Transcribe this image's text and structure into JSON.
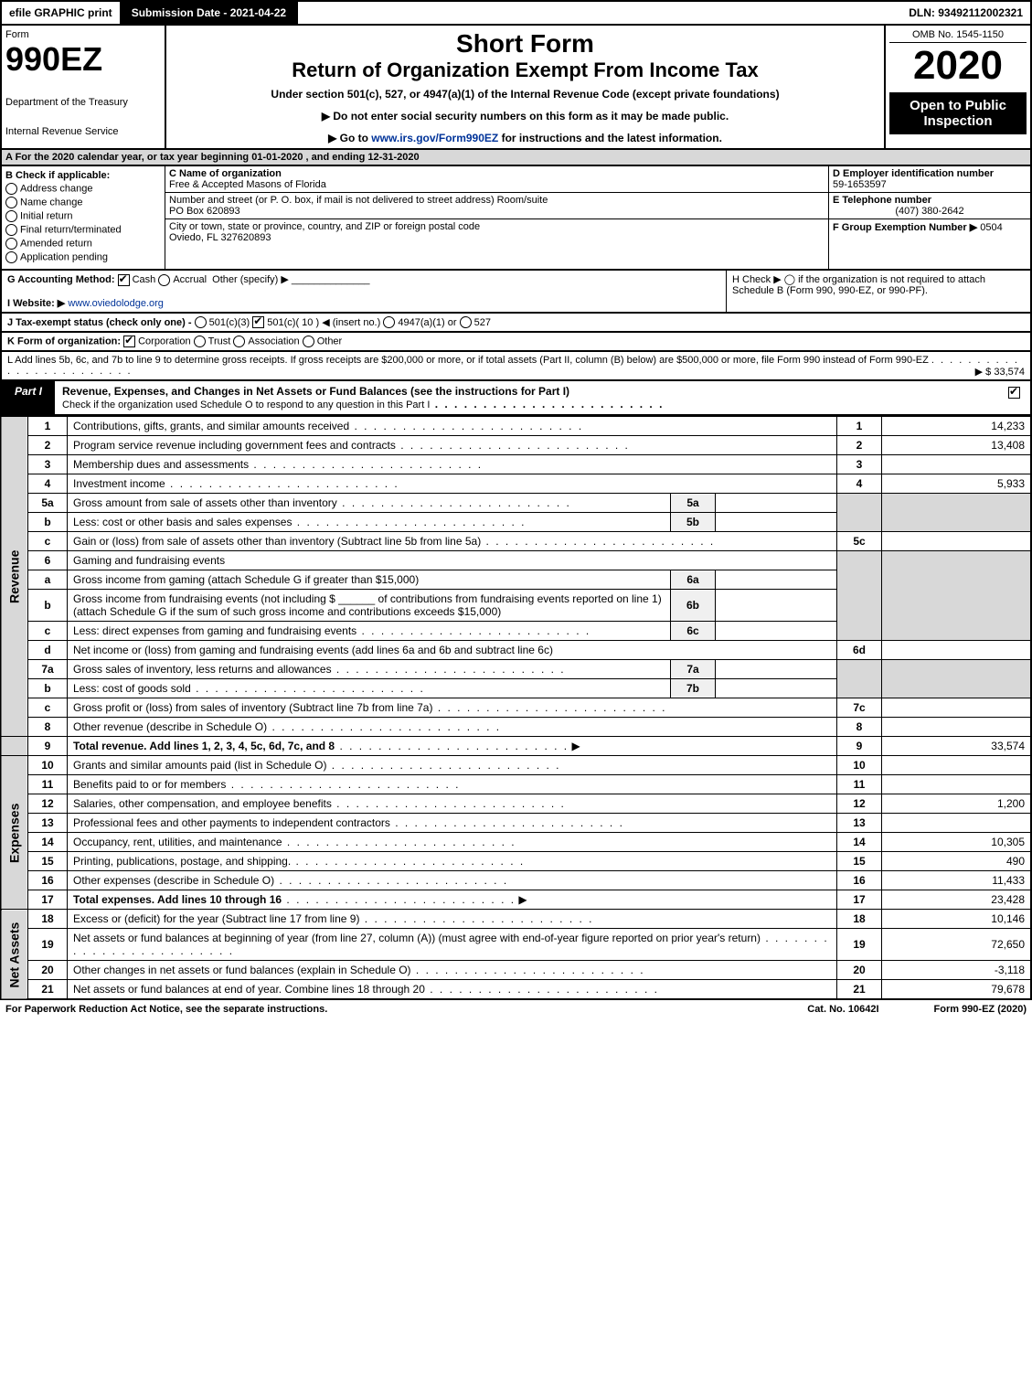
{
  "topbar": {
    "efile": "efile GRAPHIC print",
    "submission": "Submission Date - 2021-04-22",
    "dln": "DLN: 93492112002321"
  },
  "header": {
    "form_label": "Form",
    "form_num": "990EZ",
    "dept1": "Department of the Treasury",
    "dept2": "Internal Revenue Service",
    "short": "Short Form",
    "ret": "Return of Organization Exempt From Income Tax",
    "under": "Under section 501(c), 527, or 4947(a)(1) of the Internal Revenue Code (except private foundations)",
    "note1": "▶ Do not enter social security numbers on this form as it may be made public.",
    "note2_pre": "▶ Go to ",
    "note2_link": "www.irs.gov/Form990EZ",
    "note2_post": " for instructions and the latest information.",
    "omb": "OMB No. 1545-1150",
    "year": "2020",
    "inspect": "Open to Public Inspection"
  },
  "sectionA": "A  For the 2020 calendar year, or tax year beginning 01-01-2020 , and ending 12-31-2020",
  "B": {
    "title": "B  Check if applicable:",
    "opts": [
      "Address change",
      "Name change",
      "Initial return",
      "Final return/terminated",
      "Amended return",
      "Application pending"
    ]
  },
  "C": {
    "label": "C Name of organization",
    "name": "Free & Accepted Masons of Florida",
    "addr_label": "Number and street (or P. O. box, if mail is not delivered to street address)    Room/suite",
    "addr": "PO Box 620893",
    "city_label": "City or town, state or province, country, and ZIP or foreign postal code",
    "city": "Oviedo, FL  327620893"
  },
  "D": {
    "ein_label": "D Employer identification number",
    "ein": "59-1653597",
    "tel_label": "E Telephone number",
    "tel": "(407) 380-2642",
    "grp_label": "F Group Exemption Number  ▶",
    "grp": "0504"
  },
  "G": {
    "label": "G Accounting Method:",
    "cash": "Cash",
    "accrual": "Accrual",
    "other": "Other (specify) ▶"
  },
  "H": {
    "text": "H  Check ▶  ◯  if the organization is not required to attach Schedule B (Form 990, 990-EZ, or 990-PF)."
  },
  "I": {
    "label": "I Website: ▶",
    "val": "www.oviedolodge.org"
  },
  "J": {
    "label": "J Tax-exempt status (check only one) -",
    "o1": "501(c)(3)",
    "o2": "501(c)( 10 ) ◀ (insert no.)",
    "o3": "4947(a)(1) or",
    "o4": "527"
  },
  "K": {
    "label": "K Form of organization:",
    "o1": "Corporation",
    "o2": "Trust",
    "o3": "Association",
    "o4": "Other"
  },
  "L": {
    "text": "L Add lines 5b, 6c, and 7b to line 9 to determine gross receipts. If gross receipts are $200,000 or more, or if total assets (Part II, column (B) below) are $500,000 or more, file Form 990 instead of Form 990-EZ",
    "amount": "▶ $ 33,574"
  },
  "part1": {
    "tab": "Part I",
    "title": "Revenue, Expenses, and Changes in Net Assets or Fund Balances (see the instructions for Part I)",
    "check": "Check if the organization used Schedule O to respond to any question in this Part I"
  },
  "sides": {
    "rev": "Revenue",
    "exp": "Expenses",
    "na": "Net Assets"
  },
  "lines": {
    "l1": {
      "n": "1",
      "d": "Contributions, gifts, grants, and similar amounts received",
      "c": "1",
      "v": "14,233"
    },
    "l2": {
      "n": "2",
      "d": "Program service revenue including government fees and contracts",
      "c": "2",
      "v": "13,408"
    },
    "l3": {
      "n": "3",
      "d": "Membership dues and assessments",
      "c": "3",
      "v": ""
    },
    "l4": {
      "n": "4",
      "d": "Investment income",
      "c": "4",
      "v": "5,933"
    },
    "l5a": {
      "n": "5a",
      "d": "Gross amount from sale of assets other than inventory",
      "s": "5a"
    },
    "l5b": {
      "n": "b",
      "d": "Less: cost or other basis and sales expenses",
      "s": "5b"
    },
    "l5c": {
      "n": "c",
      "d": "Gain or (loss) from sale of assets other than inventory (Subtract line 5b from line 5a)",
      "c": "5c",
      "v": ""
    },
    "l6": {
      "n": "6",
      "d": "Gaming and fundraising events"
    },
    "l6a": {
      "n": "a",
      "d": "Gross income from gaming (attach Schedule G if greater than $15,000)",
      "s": "6a"
    },
    "l6b": {
      "n": "b",
      "d": "Gross income from fundraising events (not including $ ______ of contributions from fundraising events reported on line 1) (attach Schedule G if the sum of such gross income and contributions exceeds $15,000)",
      "s": "6b"
    },
    "l6c": {
      "n": "c",
      "d": "Less: direct expenses from gaming and fundraising events",
      "s": "6c"
    },
    "l6d": {
      "n": "d",
      "d": "Net income or (loss) from gaming and fundraising events (add lines 6a and 6b and subtract line 6c)",
      "c": "6d",
      "v": ""
    },
    "l7a": {
      "n": "7a",
      "d": "Gross sales of inventory, less returns and allowances",
      "s": "7a"
    },
    "l7b": {
      "n": "b",
      "d": "Less: cost of goods sold",
      "s": "7b"
    },
    "l7c": {
      "n": "c",
      "d": "Gross profit or (loss) from sales of inventory (Subtract line 7b from line 7a)",
      "c": "7c",
      "v": ""
    },
    "l8": {
      "n": "8",
      "d": "Other revenue (describe in Schedule O)",
      "c": "8",
      "v": ""
    },
    "l9": {
      "n": "9",
      "d": "Total revenue. Add lines 1, 2, 3, 4, 5c, 6d, 7c, and 8",
      "c": "9",
      "v": "33,574",
      "bold": true
    },
    "l10": {
      "n": "10",
      "d": "Grants and similar amounts paid (list in Schedule O)",
      "c": "10",
      "v": ""
    },
    "l11": {
      "n": "11",
      "d": "Benefits paid to or for members",
      "c": "11",
      "v": ""
    },
    "l12": {
      "n": "12",
      "d": "Salaries, other compensation, and employee benefits",
      "c": "12",
      "v": "1,200"
    },
    "l13": {
      "n": "13",
      "d": "Professional fees and other payments to independent contractors",
      "c": "13",
      "v": ""
    },
    "l14": {
      "n": "14",
      "d": "Occupancy, rent, utilities, and maintenance",
      "c": "14",
      "v": "10,305"
    },
    "l15": {
      "n": "15",
      "d": "Printing, publications, postage, and shipping.",
      "c": "15",
      "v": "490"
    },
    "l16": {
      "n": "16",
      "d": "Other expenses (describe in Schedule O)",
      "c": "16",
      "v": "11,433"
    },
    "l17": {
      "n": "17",
      "d": "Total expenses. Add lines 10 through 16",
      "c": "17",
      "v": "23,428",
      "bold": true
    },
    "l18": {
      "n": "18",
      "d": "Excess or (deficit) for the year (Subtract line 17 from line 9)",
      "c": "18",
      "v": "10,146"
    },
    "l19": {
      "n": "19",
      "d": "Net assets or fund balances at beginning of year (from line 27, column (A)) (must agree with end-of-year figure reported on prior year's return)",
      "c": "19",
      "v": "72,650"
    },
    "l20": {
      "n": "20",
      "d": "Other changes in net assets or fund balances (explain in Schedule O)",
      "c": "20",
      "v": "-3,118"
    },
    "l21": {
      "n": "21",
      "d": "Net assets or fund balances at end of year. Combine lines 18 through 20",
      "c": "21",
      "v": "79,678"
    }
  },
  "footer": {
    "f1": "For Paperwork Reduction Act Notice, see the separate instructions.",
    "f2": "Cat. No. 10642I",
    "f3": "Form 990-EZ (2020)"
  }
}
